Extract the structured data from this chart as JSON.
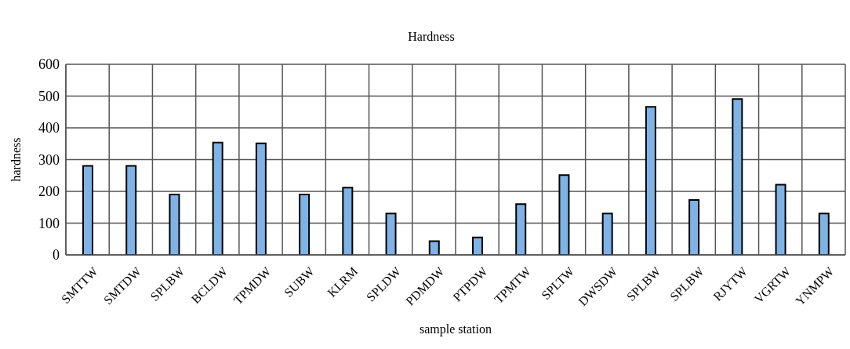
{
  "chart_data": {
    "type": "bar",
    "title": "Hardness",
    "xlabel": "sample station",
    "ylabel": "hardness",
    "categories": [
      "SMTTW",
      "SMTDW",
      "SPLBW",
      "BCLDW",
      "TPMDW",
      "SUBW",
      "KLRM",
      "SPLDW",
      "PDMDW",
      "PTPDW",
      "TPMTW",
      "SPLTW",
      "DWSDW",
      "SPLBW",
      "SPLBW",
      "RJYTW",
      "VGRTW",
      "YNMPW"
    ],
    "values": [
      280,
      280,
      190,
      354,
      351,
      190,
      212,
      130,
      43,
      55,
      160,
      251,
      130,
      466,
      173,
      491,
      221,
      130
    ],
    "color": "#7fb2e5",
    "ylim": [
      0,
      600
    ],
    "yticks": [
      0,
      100,
      200,
      300,
      400,
      500,
      600
    ],
    "grid": true,
    "legend": false
  }
}
